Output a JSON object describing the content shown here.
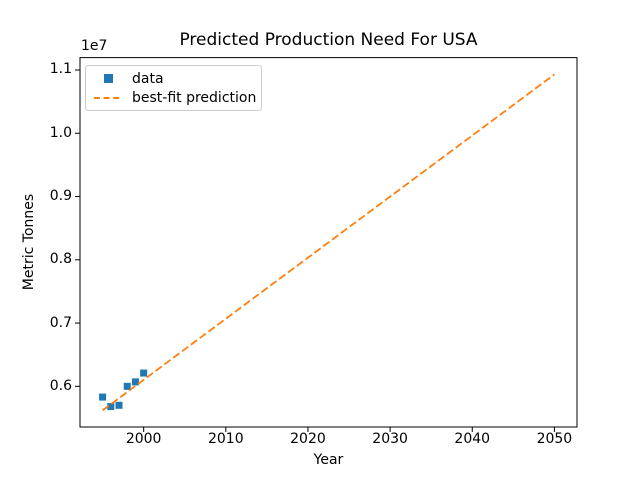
{
  "figure": {
    "title": "Predicted Production Need For USA",
    "xlabel": "Year",
    "ylabel": "Metric Tonnes",
    "y_axis_offset_text": "1e7"
  },
  "legend": {
    "position": "upper-left",
    "entries": [
      {
        "label": "data",
        "marker": "square",
        "color": "#1f77b4"
      },
      {
        "label": "best-fit prediction",
        "marker": "dashed-line",
        "color": "#ff7f0e"
      }
    ]
  },
  "chart_data": {
    "type": "scatter",
    "title": "Predicted Production Need For USA",
    "xlabel": "Year",
    "ylabel": "Metric Tonnes",
    "y_scale_factor": "1e7",
    "grid": false,
    "legend_position": "upper-left",
    "xlim": [
      1992.25,
      2052.75
    ],
    "ylim": [
      5357000,
      11196000
    ],
    "xticks": [
      2000,
      2010,
      2020,
      2030,
      2040,
      2050
    ],
    "xtick_labels": [
      "2000",
      "2010",
      "2020",
      "2030",
      "2040",
      "2050"
    ],
    "yticks": [
      6000000,
      7000000,
      8000000,
      9000000,
      10000000,
      11000000
    ],
    "ytick_labels": [
      "0.6",
      "0.7",
      "0.8",
      "0.9",
      "1.0",
      "1.1"
    ],
    "series": [
      {
        "name": "data",
        "kind": "scatter",
        "marker": "square",
        "color": "#1f77b4",
        "x": [
          1995,
          1996,
          1997,
          1998,
          1999,
          2000
        ],
        "y": [
          5830000,
          5680000,
          5700000,
          6000000,
          6070000,
          6210000
        ]
      },
      {
        "name": "best-fit prediction",
        "kind": "line",
        "style": "dashed",
        "color": "#ff7f0e",
        "x": [
          1995,
          2050
        ],
        "y": [
          5620000,
          10930000
        ]
      }
    ]
  }
}
